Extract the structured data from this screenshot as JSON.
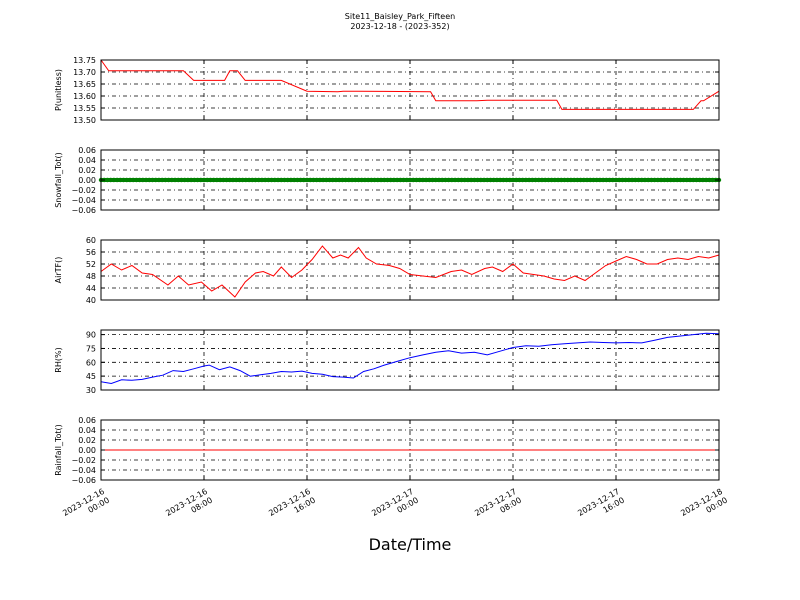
{
  "figure": {
    "title_line1": "Site11_Baisley_Park_Fifteen",
    "title_line2": "2023-12-18 - (2023-352)",
    "xlabel": "Date/Time"
  },
  "chart_data": [
    {
      "type": "line",
      "ylabel": "P(unitless)",
      "ylim": [
        13.5,
        13.75
      ],
      "yticks": [
        "13.75",
        "13.70",
        "13.65",
        "13.60",
        "13.55",
        "13.50"
      ],
      "ytick_values": [
        13.75,
        13.7,
        13.65,
        13.6,
        13.55,
        13.5
      ],
      "grid": true,
      "series": [
        {
          "color": "#ff0000",
          "x": [
            0.0,
            0.3,
            1.6,
            2.0,
            2.5,
            3.2,
            3.6,
            4.0,
            4.8,
            5.0,
            5.1,
            5.3,
            5.6,
            7.0,
            8.0,
            9.2,
            9.4,
            10.0,
            11.0,
            12.8,
            13.0,
            13.1,
            13.8,
            14.0,
            14.1,
            14.6,
            15.0,
            16.0,
            17.0,
            17.7,
            17.9,
            18.4,
            19.0,
            23.0,
            23.3,
            23.4,
            24.0
          ],
          "y": [
            13.75,
            13.705,
            13.705,
            13.705,
            13.705,
            13.705,
            13.665,
            13.665,
            13.665,
            13.705,
            13.705,
            13.705,
            13.665,
            13.665,
            13.62,
            13.618,
            13.62,
            13.62,
            13.619,
            13.618,
            13.58,
            13.58,
            13.58,
            13.58,
            13.58,
            13.58,
            13.582,
            13.582,
            13.582,
            13.582,
            13.544,
            13.544,
            13.544,
            13.544,
            13.58,
            13.58,
            13.62
          ]
        }
      ]
    },
    {
      "type": "line",
      "ylabel": "Snowfall_Tot()",
      "ylim": [
        -0.06,
        0.06
      ],
      "yticks": [
        "0.06",
        "0.04",
        "0.02",
        "0.00",
        "−0.02",
        "−0.04",
        "−0.06"
      ],
      "ytick_values": [
        0.06,
        0.04,
        0.02,
        0.0,
        -0.02,
        -0.04,
        -0.06
      ],
      "grid": true,
      "series": [
        {
          "color": "#008000",
          "marker": "dots",
          "x": [
            0,
            24
          ],
          "y": [
            0.0,
            0.0
          ]
        }
      ]
    },
    {
      "type": "line",
      "ylabel": "AirTF()",
      "ylim": [
        40,
        60
      ],
      "yticks": [
        "60",
        "56",
        "52",
        "48",
        "44",
        "40"
      ],
      "ytick_values": [
        60,
        56,
        52,
        48,
        44,
        40
      ],
      "grid": true,
      "series": [
        {
          "color": "#ff0000",
          "x": [
            0.0,
            0.4,
            0.8,
            1.2,
            1.6,
            2.0,
            2.6,
            3.0,
            3.4,
            3.9,
            4.3,
            4.7,
            5.2,
            5.6,
            6.0,
            6.3,
            6.7,
            7.0,
            7.4,
            7.8,
            8.2,
            8.6,
            9.0,
            9.3,
            9.6,
            10.0,
            10.3,
            10.7,
            11.2,
            11.6,
            12.0,
            12.5,
            13.0,
            13.6,
            14.0,
            14.4,
            14.9,
            15.2,
            15.6,
            16.0,
            16.4,
            16.8,
            17.2,
            17.6,
            18.0,
            18.4,
            18.8,
            19.2,
            19.6,
            20.0,
            20.4,
            20.8,
            21.2,
            21.6,
            22.0,
            22.4,
            22.8,
            23.2,
            23.6,
            24.0
          ],
          "y": [
            49.5,
            52.0,
            50.0,
            51.5,
            49.0,
            48.5,
            45.0,
            48.0,
            45.0,
            46.0,
            43.0,
            45.0,
            41.0,
            46.0,
            49.0,
            49.5,
            48.0,
            51.0,
            47.5,
            50.0,
            53.5,
            58.0,
            54.0,
            55.0,
            54.0,
            57.5,
            54.0,
            52.0,
            51.5,
            50.5,
            48.5,
            48.0,
            47.5,
            49.5,
            50.0,
            48.5,
            50.5,
            51.0,
            49.5,
            52.0,
            49.0,
            48.5,
            48.0,
            47.0,
            46.5,
            48.0,
            46.5,
            49.0,
            51.5,
            53.0,
            54.5,
            53.5,
            52.0,
            52.0,
            53.5,
            54.0,
            53.5,
            54.5,
            54.0,
            55.0
          ]
        }
      ]
    },
    {
      "type": "line",
      "ylabel": "RH(%)",
      "ylim": [
        30,
        95
      ],
      "yticks": [
        "90",
        "75",
        "60",
        "45",
        "30"
      ],
      "ytick_values": [
        90,
        75,
        60,
        45,
        30
      ],
      "grid": true,
      "series": [
        {
          "color": "#0000ff",
          "x": [
            0.0,
            0.4,
            0.8,
            1.2,
            1.6,
            2.0,
            2.4,
            2.8,
            3.2,
            3.6,
            4.0,
            4.2,
            4.6,
            5.0,
            5.4,
            5.8,
            6.2,
            6.6,
            7.0,
            7.4,
            7.8,
            8.2,
            8.6,
            9.0,
            9.4,
            9.8,
            10.2,
            10.6,
            11.0,
            11.5,
            12.0,
            12.5,
            13.0,
            13.5,
            14.0,
            14.5,
            15.0,
            15.5,
            16.0,
            16.5,
            17.0,
            17.5,
            18.0,
            18.5,
            19.0,
            19.5,
            20.0,
            20.5,
            21.0,
            21.5,
            22.0,
            22.5,
            23.0,
            23.5,
            24.0
          ],
          "y": [
            39.0,
            37.0,
            41.0,
            40.5,
            41.5,
            44.0,
            46.0,
            51.0,
            50.0,
            53.0,
            56.0,
            57.0,
            52.0,
            55.0,
            51.0,
            45.0,
            46.5,
            48.0,
            50.0,
            49.5,
            50.5,
            48.0,
            47.0,
            44.5,
            44.0,
            43.0,
            50.0,
            53.0,
            57.0,
            61.0,
            65.0,
            68.0,
            71.0,
            72.5,
            70.0,
            71.0,
            68.0,
            72.0,
            76.0,
            78.0,
            77.5,
            79.0,
            80.0,
            81.0,
            82.0,
            81.5,
            81.0,
            81.5,
            81.0,
            84.0,
            87.0,
            88.5,
            90.0,
            91.5,
            91.0
          ]
        }
      ]
    },
    {
      "type": "line",
      "ylabel": "Rainfall_Tot()",
      "ylim": [
        -0.06,
        0.06
      ],
      "yticks": [
        "0.06",
        "0.04",
        "0.02",
        "0.00",
        "−0.02",
        "−0.04",
        "−0.06"
      ],
      "ytick_values": [
        0.06,
        0.04,
        0.02,
        0.0,
        -0.02,
        -0.04,
        -0.06
      ],
      "grid": true,
      "series": [
        {
          "color": "#ff0000",
          "x": [
            0,
            24
          ],
          "y": [
            0.0,
            0.0
          ]
        }
      ]
    }
  ],
  "x_axis": {
    "xlim": [
      0,
      24
    ],
    "tick_values": [
      0,
      4,
      8,
      12,
      16,
      20,
      24
    ],
    "tick_labels": [
      [
        "2023-12-16",
        "00:00"
      ],
      [
        "2023-12-16",
        "08:00"
      ],
      [
        "2023-12-16",
        "16:00"
      ],
      [
        "2023-12-17",
        "00:00"
      ],
      [
        "2023-12-17",
        "08:00"
      ],
      [
        "2023-12-17",
        "16:00"
      ],
      [
        "2023-12-18",
        "00:00"
      ]
    ]
  }
}
